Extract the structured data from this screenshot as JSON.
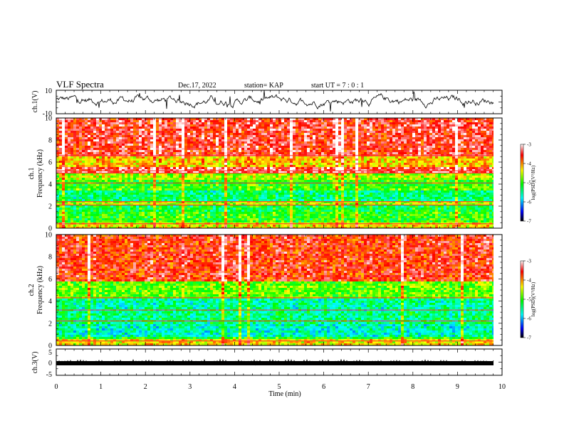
{
  "header": {
    "title": "VLF Spectra",
    "date": "Dec.17, 2022",
    "station": "station= KAP",
    "start": "start  UT =   7 : 0  : 1"
  },
  "chart_data": [
    {
      "type": "line",
      "panel": "ch1-waveform",
      "ylabel": "ch.1(V)",
      "ylim": [
        -10,
        10
      ],
      "yticks": [
        "10",
        "-10"
      ],
      "xlim": [
        0,
        10
      ],
      "series_color": "#000000"
    },
    {
      "type": "heatmap",
      "panel": "ch1-spectrogram",
      "ylabel": "ch.1\nFrequency (kHz)",
      "ylim": [
        0,
        10
      ],
      "yticks": [
        "0",
        "2",
        "4",
        "6",
        "8",
        "10"
      ],
      "xlim": [
        0,
        10
      ],
      "colorbar": {
        "label": "log(PSD)(V²/Hz)",
        "range": [
          -7,
          -3
        ],
        "ticks": [
          "-3",
          "-4",
          "-5",
          "-6",
          "-7"
        ]
      }
    },
    {
      "type": "heatmap",
      "panel": "ch2-spectrogram",
      "ylabel": "ch.2\nFrequency (kHz)",
      "ylim": [
        0,
        10
      ],
      "yticks": [
        "0",
        "2",
        "4",
        "6",
        "8",
        "10"
      ],
      "xlim": [
        0,
        10
      ],
      "colorbar": {
        "label": "log(PSD)(V²/Hz)",
        "range": [
          -7,
          -3
        ],
        "ticks": [
          "-3",
          "-4",
          "-5",
          "-6",
          "-7"
        ]
      }
    },
    {
      "type": "line",
      "panel": "ch3-waveform",
      "ylabel": "ch.3(V)",
      "ylim": [
        -5,
        5
      ],
      "yticks": [
        "5",
        "0",
        "-5"
      ],
      "xlim": [
        0,
        10
      ],
      "xlabel": "Time  (min)",
      "xticks": [
        "0",
        "1",
        "2",
        "3",
        "4",
        "5",
        "6",
        "7",
        "8",
        "9",
        "10"
      ],
      "series_color": "#000000"
    }
  ],
  "colors": {
    "low": "#000000",
    "blue": "#0000ff",
    "cyan": "#00ffff",
    "green": "#00ff00",
    "yellow": "#ffff00",
    "red": "#ff0000",
    "high": "#ffffff"
  }
}
